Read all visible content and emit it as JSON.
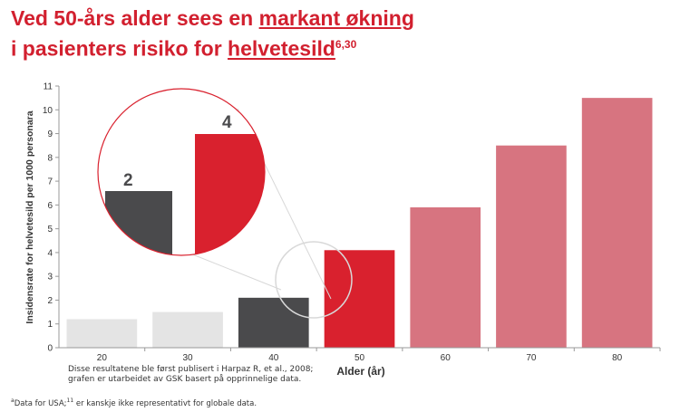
{
  "title": {
    "line1_a": "Ved 50-års alder sees en ",
    "line1_u": "markant økning",
    "line2_a": "i pasienters risiko for ",
    "line2_u": "helvetesild",
    "line2_sup": "6,30"
  },
  "source_note": "Disse resultatene ble først publisert i Harpaz R, et al., 2008; grafen er utarbeidet av GSK basert på opprinnelige data.",
  "footnote": {
    "mark": "a",
    "text_a": "Data for USA;",
    "sup2": "11",
    "text_b": " er kanskje ikke representativt for globale data."
  },
  "chart_data": {
    "type": "bar",
    "categories": [
      "20",
      "30",
      "40",
      "50",
      "60",
      "70",
      "80"
    ],
    "values": [
      1.2,
      1.5,
      2.1,
      4.1,
      5.9,
      8.5,
      10.5
    ],
    "bar_colors": [
      "#e4e4e4",
      "#e4e4e4",
      "#4a4a4c",
      "#d9212e",
      "#d77480",
      "#d77480",
      "#d77480"
    ],
    "ylim": [
      0,
      11
    ],
    "yticks": [
      0,
      1,
      2,
      3,
      4,
      5,
      6,
      7,
      8,
      9,
      10,
      11
    ],
    "xlabel": "Alder (år)",
    "ylabel": "Insidensrate for helvetesild per 1000 personara",
    "zoom_callout": {
      "labels": [
        "2",
        "4"
      ],
      "left_color": "#4a4a4c",
      "right_color": "#d9212e"
    }
  }
}
